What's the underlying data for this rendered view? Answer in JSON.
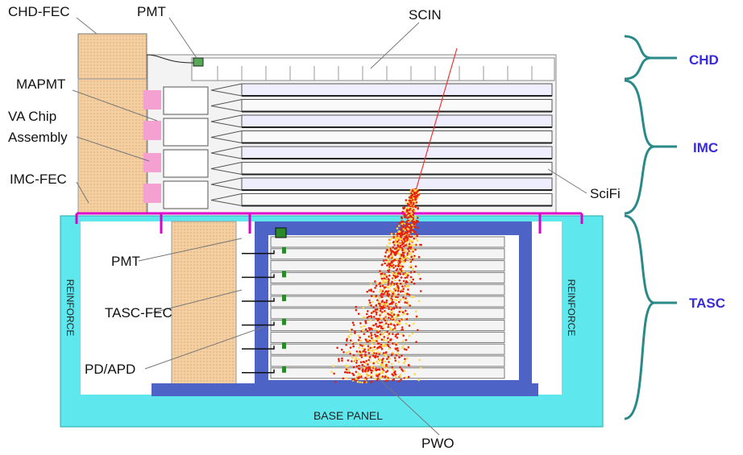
{
  "components": [
    {
      "label": "CHD-FEC"
    },
    {
      "label": "PMT"
    },
    {
      "label": "SCIN"
    },
    {
      "label": "MAPMT"
    },
    {
      "lines": [
        "VA Chip",
        "Assembly"
      ]
    },
    {
      "label": "IMC-FEC"
    },
    {
      "label": "SciFi"
    },
    {
      "label": "PMT"
    },
    {
      "label": "TASC-FEC"
    },
    {
      "label": "PD/APD"
    },
    {
      "label": "REINFORCE"
    },
    {
      "label": "REINFORCE"
    },
    {
      "label": "BASE PANEL"
    },
    {
      "label": "PWO"
    }
  ],
  "sections": [
    {
      "label": "CHD"
    },
    {
      "label": "IMC"
    },
    {
      "label": "TASC"
    }
  ]
}
